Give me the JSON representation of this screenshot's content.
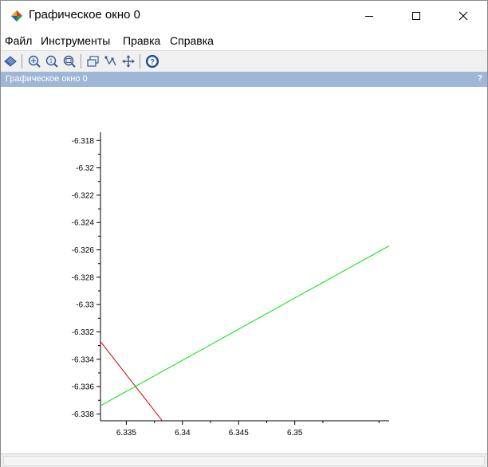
{
  "window": {
    "title": "Графическое окно 0"
  },
  "menu": {
    "items": [
      "Файл",
      "Инструменты",
      "Правка",
      "Справка"
    ]
  },
  "toolbar": {
    "tools": [
      "rotate-icon",
      "zoom-in-icon",
      "zoom-fit-icon",
      "zoom-out-icon",
      "datatip-icon",
      "edit-curve-icon",
      "pan-icon",
      "help-icon"
    ]
  },
  "dock": {
    "title": "Графическое окно 0",
    "help_label": "?"
  },
  "colors": {
    "dock_bar": "#9eb7d6",
    "series_red": "#cc0000",
    "series_green": "#00e000"
  },
  "chart_data": {
    "type": "line",
    "title": "",
    "xlabel": "",
    "ylabel": "",
    "xlim": [
      6.3327,
      6.3584
    ],
    "ylim": [
      -6.3385,
      -6.3174
    ],
    "x_ticks": [
      6.335,
      6.34,
      6.345,
      6.35
    ],
    "x_tick_labels": [
      "6.335",
      "6.34",
      "6.345",
      "6.35"
    ],
    "y_ticks": [
      -6.318,
      -6.32,
      -6.322,
      -6.324,
      -6.326,
      -6.328,
      -6.33,
      -6.332,
      -6.334,
      -6.336,
      -6.338
    ],
    "y_tick_labels": [
      "-6.318",
      "-6.32",
      "-6.322",
      "-6.324",
      "-6.326",
      "-6.328",
      "-6.33",
      "-6.332",
      "-6.334",
      "-6.336",
      "-6.338"
    ],
    "grid": false,
    "series": [
      {
        "color": "#cc0000",
        "x": [
          6.3327,
          6.3382
        ],
        "y": [
          -6.3327,
          -6.3385
        ]
      },
      {
        "color": "#00e000",
        "x": [
          6.3327,
          6.3584
        ],
        "y": [
          -6.3374,
          -6.3257
        ]
      }
    ]
  }
}
